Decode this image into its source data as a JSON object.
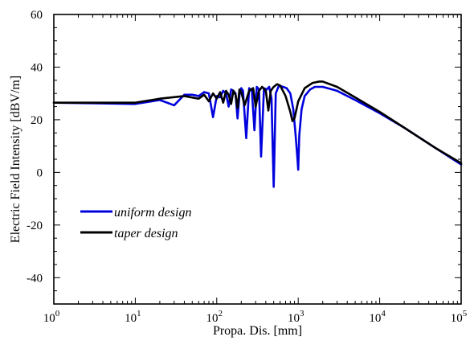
{
  "chart_data": {
    "type": "line",
    "xlabel": "Propa. Dis. [mm]",
    "ylabel": "Electric Field Intensity [dBV/m]",
    "xscale": "log",
    "xlim": [
      1,
      100000
    ],
    "ylim": [
      -50,
      60
    ],
    "x_ticks": [
      {
        "base": "10",
        "exp": "0",
        "value": 1
      },
      {
        "base": "10",
        "exp": "1",
        "value": 10
      },
      {
        "base": "10",
        "exp": "2",
        "value": 100
      },
      {
        "base": "10",
        "exp": "3",
        "value": 1000
      },
      {
        "base": "10",
        "exp": "4",
        "value": 10000
      },
      {
        "base": "10",
        "exp": "5",
        "value": 100000
      }
    ],
    "y_ticks": [
      {
        "label": "60",
        "value": 60
      },
      {
        "label": "40",
        "value": 40
      },
      {
        "label": "20",
        "value": 20
      },
      {
        "label": "0",
        "value": 0
      },
      {
        "label": "-20",
        "value": -20
      },
      {
        "label": "-40",
        "value": -40
      }
    ],
    "legend_position": "left-middle",
    "series": [
      {
        "name": "uniform design",
        "color": "#0000dd",
        "x": [
          1,
          10,
          20,
          30,
          40,
          50,
          60,
          70,
          80,
          90,
          100,
          110,
          120,
          130,
          140,
          150,
          160,
          170,
          180,
          190,
          200,
          210,
          230,
          250,
          270,
          290,
          310,
          330,
          350,
          380,
          410,
          440,
          470,
          500,
          530,
          580,
          650,
          720,
          800,
          870,
          930,
          980,
          1000,
          1030,
          1100,
          1200,
          1400,
          1600,
          2000,
          3000,
          5000,
          10000,
          20000,
          50000,
          100000
        ],
        "y": [
          26.5,
          26,
          27.5,
          25.5,
          29.5,
          29.5,
          29,
          30.5,
          30,
          21,
          29,
          28.5,
          31,
          30,
          25,
          31.5,
          31,
          30,
          20.5,
          29.5,
          32,
          31,
          13,
          32,
          31,
          16,
          32.5,
          31.5,
          6,
          32,
          31.5,
          32.5,
          28,
          -5.5,
          30,
          33,
          32.5,
          32,
          30,
          24,
          14,
          5,
          1,
          14,
          24,
          29,
          31.5,
          32.5,
          32.5,
          31,
          27.5,
          22.5,
          17,
          9,
          3
        ]
      },
      {
        "name": "taper design",
        "color": "#000000",
        "x": [
          1,
          10,
          20,
          40,
          60,
          70,
          80,
          90,
          100,
          110,
          120,
          130,
          140,
          150,
          160,
          170,
          180,
          190,
          200,
          220,
          250,
          280,
          300,
          330,
          360,
          400,
          430,
          460,
          500,
          550,
          600,
          700,
          800,
          850,
          900,
          1000,
          1200,
          1500,
          1800,
          2000,
          3000,
          5000,
          10000,
          20000,
          50000,
          100000
        ],
        "y": [
          26.5,
          26.5,
          28,
          29,
          28,
          29.5,
          27,
          30,
          28,
          30.5,
          26.5,
          31,
          29.5,
          26,
          31,
          29.5,
          24.5,
          31.5,
          30.5,
          25.5,
          31,
          32,
          25,
          31,
          32.5,
          31,
          23.5,
          31,
          32.5,
          33.5,
          33,
          29,
          23,
          19.5,
          20.5,
          27,
          32,
          34,
          34.5,
          34.5,
          32.5,
          28.5,
          23,
          17,
          9,
          3.5
        ]
      }
    ]
  }
}
